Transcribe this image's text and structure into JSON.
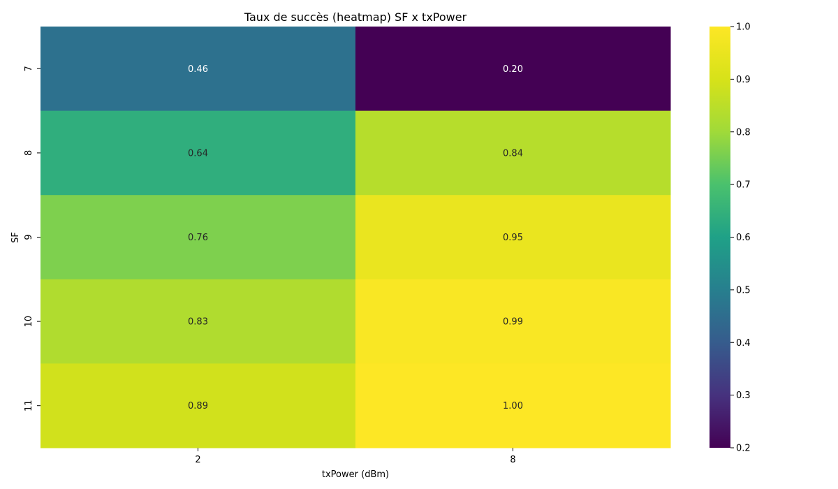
{
  "chart_data": {
    "type": "heatmap",
    "title": "Taux de succès (heatmap) SF x txPower",
    "xlabel": "txPower (dBm)",
    "ylabel": "SF",
    "x_categories": [
      "2",
      "8"
    ],
    "y_categories": [
      "7",
      "8",
      "9",
      "10",
      "11"
    ],
    "values": [
      [
        0.46,
        0.2
      ],
      [
        0.64,
        0.84
      ],
      [
        0.76,
        0.95
      ],
      [
        0.83,
        0.99
      ],
      [
        0.89,
        1.0
      ]
    ],
    "cell_labels": [
      [
        "0.46",
        "0.20"
      ],
      [
        "0.64",
        "0.84"
      ],
      [
        "0.76",
        "0.95"
      ],
      [
        "0.83",
        "0.99"
      ],
      [
        "0.89",
        "1.00"
      ]
    ],
    "colormap": "viridis",
    "colorbar": {
      "range": [
        0.2,
        1.0
      ],
      "ticks": [
        "0.2",
        "0.3",
        "0.4",
        "0.5",
        "0.6",
        "0.7",
        "0.8",
        "0.9",
        "1.0"
      ]
    },
    "annotations": true
  }
}
